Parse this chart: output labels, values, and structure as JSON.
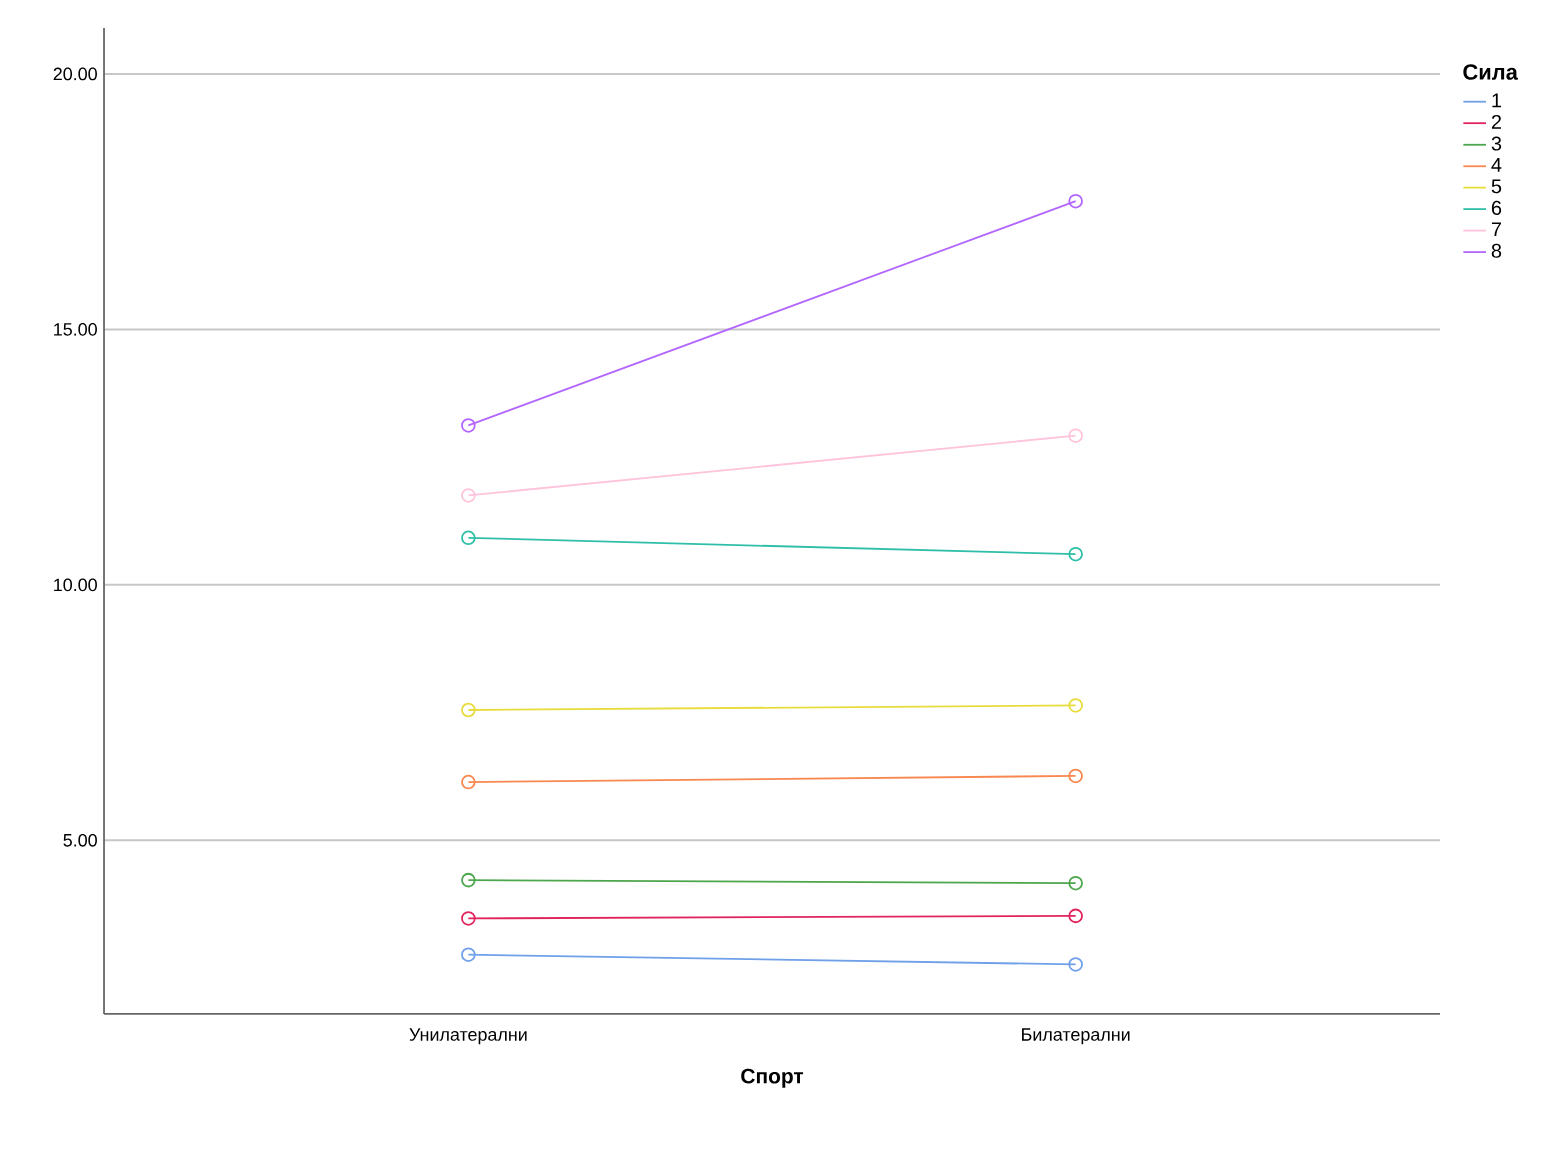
{
  "chart_data": {
    "type": "line",
    "xlabel": "Спорт",
    "legend_title": "Сила",
    "categories": [
      "Унилатерални",
      "Билатерални"
    ],
    "series": [
      {
        "name": "1",
        "color": "#6fa0e8",
        "values": [
          2.76,
          2.57
        ]
      },
      {
        "name": "2",
        "color": "#e0245e",
        "values": [
          3.47,
          3.52
        ]
      },
      {
        "name": "3",
        "color": "#4ca64c",
        "values": [
          4.22,
          4.16
        ]
      },
      {
        "name": "4",
        "color": "#f98850",
        "values": [
          6.14,
          6.26
        ]
      },
      {
        "name": "5",
        "color": "#e8dc3c",
        "values": [
          7.55,
          7.64
        ]
      },
      {
        "name": "6",
        "color": "#2fbfa8",
        "values": [
          10.92,
          10.6
        ]
      },
      {
        "name": "7",
        "color": "#ffc4dc",
        "values": [
          11.75,
          12.92
        ]
      },
      {
        "name": "8",
        "color": "#b366ff",
        "values": [
          13.12,
          17.51
        ]
      }
    ],
    "ylim": [
      1.6,
      20.9
    ],
    "yticks": [
      {
        "value": 5,
        "label": "5.00"
      },
      {
        "value": 10,
        "label": "10.00"
      },
      {
        "value": 15,
        "label": "15.00"
      },
      {
        "value": 20,
        "label": "20.00"
      }
    ],
    "grid": "y",
    "legend": "top right",
    "marker": "circle",
    "line_style": "solid"
  }
}
